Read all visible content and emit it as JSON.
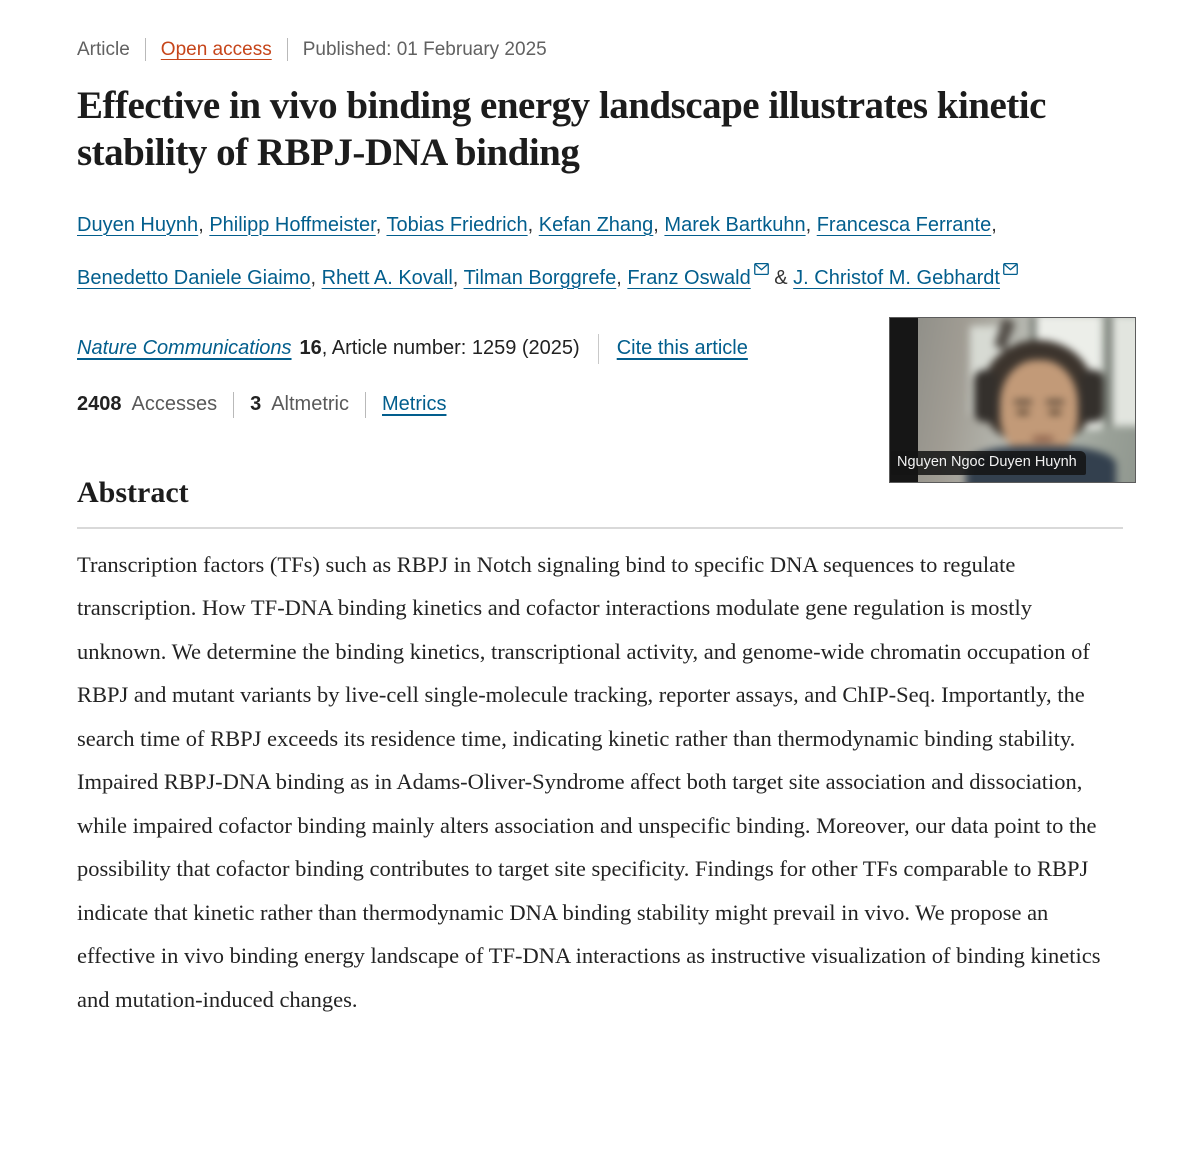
{
  "meta": {
    "article_type": "Article",
    "open_access": "Open access",
    "published": "Published: 01 February 2025"
  },
  "title": "Effective in vivo binding energy landscape illustrates kinetic stability of RBPJ-DNA binding",
  "authors": [
    {
      "name": "Duyen Huynh",
      "email": false,
      "sep": ", "
    },
    {
      "name": "Philipp Hoffmeister",
      "email": false,
      "sep": ", "
    },
    {
      "name": "Tobias Friedrich",
      "email": false,
      "sep": ", "
    },
    {
      "name": "Kefan Zhang",
      "email": false,
      "sep": ", "
    },
    {
      "name": "Marek Bartkuhn",
      "email": false,
      "sep": ", "
    },
    {
      "name": "Francesca Ferrante",
      "email": false,
      "sep": ", "
    },
    {
      "name": "Benedetto Daniele Giaimo",
      "email": false,
      "sep": ", "
    },
    {
      "name": "Rhett A. Kovall",
      "email": false,
      "sep": ", "
    },
    {
      "name": "Tilman Borggrefe",
      "email": false,
      "sep": ", "
    },
    {
      "name": "Franz Oswald",
      "email": true,
      "sep": " & "
    },
    {
      "name": "J. Christof M. Gebhardt",
      "email": true,
      "sep": ""
    }
  ],
  "journal": {
    "name": "Nature Communications",
    "volume": "16",
    "article_info": ", Article number: 1259 (2025)",
    "cite_link": "Cite this article"
  },
  "metrics": {
    "accesses_count": "2408",
    "accesses_label": "Accesses",
    "altmetric_count": "3",
    "altmetric_label": "Altmetric",
    "metrics_link": "Metrics"
  },
  "webcam_overlay": {
    "name_label": "Nguyen Ngoc Duyen Huynh"
  },
  "abstract": {
    "heading": "Abstract",
    "text": "Transcription factors (TFs) such as RBPJ in Notch signaling bind to specific DNA sequences to regulate transcription. How TF-DNA binding kinetics and cofactor interactions modulate gene regulation is mostly unknown. We determine the binding kinetics, transcriptional activity, and genome-wide chromatin occupation of RBPJ and mutant variants by live-cell single-molecule tracking, reporter assays, and ChIP-Seq. Importantly, the search time of RBPJ exceeds its residence time, indicating kinetic rather than thermodynamic binding stability. Impaired RBPJ-DNA binding as in Adams-Oliver-Syndrome affect both target site association and dissociation, while impaired cofactor binding mainly alters association and unspecific binding. Moreover, our data point to the possibility that cofactor binding contributes to target site specificity. Findings for other TFs comparable to RBPJ indicate that kinetic rather than thermodynamic DNA binding stability might prevail in vivo. We propose an effective in vivo binding energy landscape of TF-DNA interactions as instructive visualization of binding kinetics and mutation-induced changes."
  },
  "colors": {
    "link_blue": "#025e8d",
    "open_access_orange": "#c6451a",
    "text_dark": "#222222",
    "meta_gray": "#616161"
  }
}
